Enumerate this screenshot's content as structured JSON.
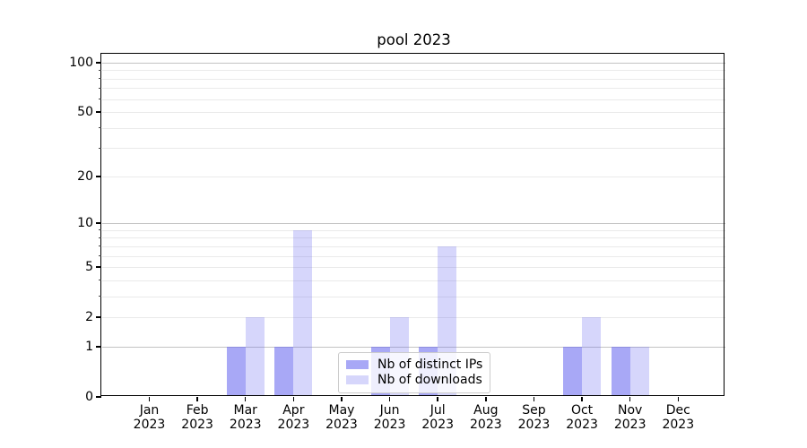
{
  "chart_data": {
    "type": "bar",
    "title": "pool 2023",
    "categories": [
      "Jan 2023",
      "Feb 2023",
      "Mar 2023",
      "Apr 2023",
      "May 2023",
      "Jun 2023",
      "Jul 2023",
      "Aug 2023",
      "Sep 2023",
      "Oct 2023",
      "Nov 2023",
      "Dec 2023"
    ],
    "series": [
      {
        "name": "Nb of distinct IPs",
        "values": [
          0,
          0,
          1,
          1,
          0,
          1,
          1,
          0,
          0,
          1,
          1,
          0
        ],
        "color_rgb": "105,105,240",
        "alpha": 0.58
      },
      {
        "name": "Nb of downloads",
        "values": [
          0,
          0,
          2,
          9,
          0,
          2,
          7,
          0,
          0,
          2,
          1,
          0
        ],
        "color_rgb": "105,105,240",
        "alpha": 0.27
      }
    ],
    "y_axis": {
      "scale": "log1p",
      "tick_labels": [
        "0",
        "1",
        "2",
        "5",
        "10",
        "20",
        "50",
        "100"
      ],
      "tick_values": [
        0,
        1,
        2,
        5,
        10,
        20,
        50,
        100
      ],
      "major_grid_values": [
        1,
        10,
        100
      ],
      "minor_grid_values": [
        2,
        3,
        4,
        5,
        6,
        7,
        8,
        9,
        20,
        30,
        40,
        50,
        60,
        70,
        80,
        90
      ]
    },
    "x_axis": {
      "tick_count": 12
    },
    "legend": {
      "position": "lower center"
    },
    "grid": true,
    "colors": {
      "major_grid": "#c3c3c3",
      "minor_grid": "#eaeaea",
      "spine": "#000000",
      "background": "#ffffff",
      "bar_fill_base": "#6969f0"
    }
  }
}
